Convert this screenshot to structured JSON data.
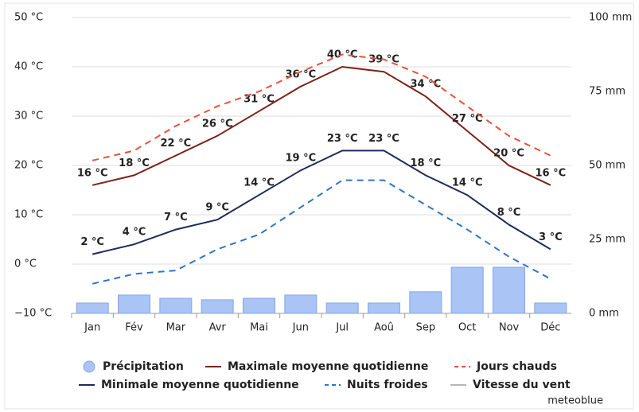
{
  "chart_data": {
    "type": "line",
    "categories": [
      "Jan",
      "Fév",
      "Mar",
      "Avr",
      "Mai",
      "Jun",
      "Jul",
      "Aoû",
      "Sep",
      "Oct",
      "Nov",
      "Déc"
    ],
    "ylim": [
      -10,
      50
    ],
    "yticks": [
      {
        "value": -10,
        "label": "−10 °C"
      },
      {
        "value": 0,
        "label": "0 °C"
      },
      {
        "value": 10,
        "label": "10 °C"
      },
      {
        "value": 20,
        "label": "20 °C"
      },
      {
        "value": 30,
        "label": "30 °C"
      },
      {
        "value": 40,
        "label": "40 °C"
      },
      {
        "value": 50,
        "label": "50 °C"
      }
    ],
    "y2lim": [
      0,
      100
    ],
    "y2ticks": [
      {
        "value": 0,
        "label": "0 mm"
      },
      {
        "value": 25,
        "label": "25 mm"
      },
      {
        "value": 50,
        "label": "50 mm"
      },
      {
        "value": 75,
        "label": "75 mm"
      },
      {
        "value": 100,
        "label": "100 mm"
      }
    ],
    "grid": true,
    "series": [
      {
        "name": "Précipitation",
        "type": "bar",
        "axis": "y2",
        "color": "#a9c4f5",
        "values": [
          3.5,
          6.2,
          5.1,
          4.6,
          5.1,
          6.2,
          3.5,
          3.5,
          7.3,
          15.6,
          15.6,
          3.5
        ]
      },
      {
        "name": "Maximale moyenne quotidienne",
        "type": "line",
        "color": "#7a2218",
        "dash": false,
        "values": [
          16,
          18,
          22,
          26,
          31,
          36,
          40,
          39,
          34,
          27,
          20,
          16
        ],
        "value_labels": [
          "16 °C",
          "18 °C",
          "22 °C",
          "26 °C",
          "31 °C",
          "36 °C",
          "40 °C",
          "39 °C",
          "34 °C",
          "27 °C",
          "20 °C",
          "16 °C"
        ],
        "label_color": "#5a1a10"
      },
      {
        "name": "Jours chauds",
        "type": "line",
        "color": "#e8503a",
        "dash": true,
        "values": [
          21,
          23,
          28,
          32,
          35,
          39,
          42.5,
          41.5,
          38,
          32,
          26,
          22
        ]
      },
      {
        "name": "Minimale moyenne quotidienne",
        "type": "line",
        "color": "#1e2a5c",
        "dash": false,
        "values": [
          2,
          4,
          7,
          9,
          14,
          19,
          23,
          23,
          18,
          14,
          8,
          3
        ],
        "value_labels": [
          "2 °C",
          "4 °C",
          "7 °C",
          "9 °C",
          "14 °C",
          "19 °C",
          "23 °C",
          "23 °C",
          "18 °C",
          "14 °C",
          "8 °C",
          "3 °C"
        ],
        "label_color": "#1e2a5c"
      },
      {
        "name": "Nuits froides",
        "type": "line",
        "color": "#2f73c9",
        "dash": true,
        "values": [
          -4,
          -2,
          -1.3,
          3,
          6,
          11.5,
          17,
          17,
          12,
          7,
          1.5,
          -3
        ]
      },
      {
        "name": "Vitesse du vent",
        "type": "line",
        "color": "#b5b5b5",
        "dash": false,
        "values": [
          null,
          null,
          null,
          null,
          null,
          null,
          null,
          null,
          null,
          null,
          null,
          null
        ]
      }
    ],
    "source": "meteoblue"
  }
}
